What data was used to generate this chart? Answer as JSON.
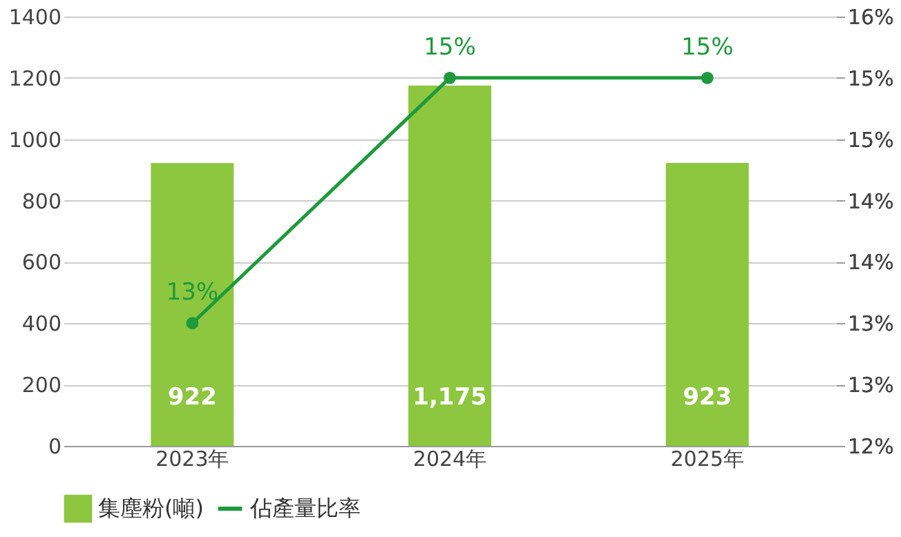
{
  "chart_data": {
    "type": "bar",
    "categories": [
      "2023年",
      "2024年",
      "2025年"
    ],
    "series": [
      {
        "name": "集塵粉(噸)",
        "color": "#8dc63f",
        "values": [
          922,
          1175,
          923
        ],
        "value_labels": [
          "922",
          "1,175",
          "923"
        ]
      },
      {
        "name": "佔產量比率",
        "type": "line",
        "axis": "y2",
        "color": "#1e9a3c",
        "values": [
          13,
          15,
          15
        ],
        "value_labels": [
          "13%",
          "15%",
          "15%"
        ]
      }
    ],
    "ylim": [
      0,
      1400
    ],
    "yticks": [
      0,
      200,
      400,
      600,
      800,
      1000,
      1200,
      1400
    ],
    "y2lim": [
      12,
      15.5
    ],
    "y2ticks": [
      {
        "value": 12,
        "label": "12%"
      },
      {
        "value": 12.5,
        "label": "13%"
      },
      {
        "value": 13,
        "label": "13%"
      },
      {
        "value": 13.5,
        "label": "14%"
      },
      {
        "value": 14,
        "label": "14%"
      },
      {
        "value": 14.5,
        "label": "15%"
      },
      {
        "value": 15,
        "label": "15%"
      },
      {
        "value": 15.5,
        "label": "16%"
      }
    ],
    "grid": "y",
    "legend": "bottom",
    "marker": "circle",
    "line_style": "solid"
  }
}
